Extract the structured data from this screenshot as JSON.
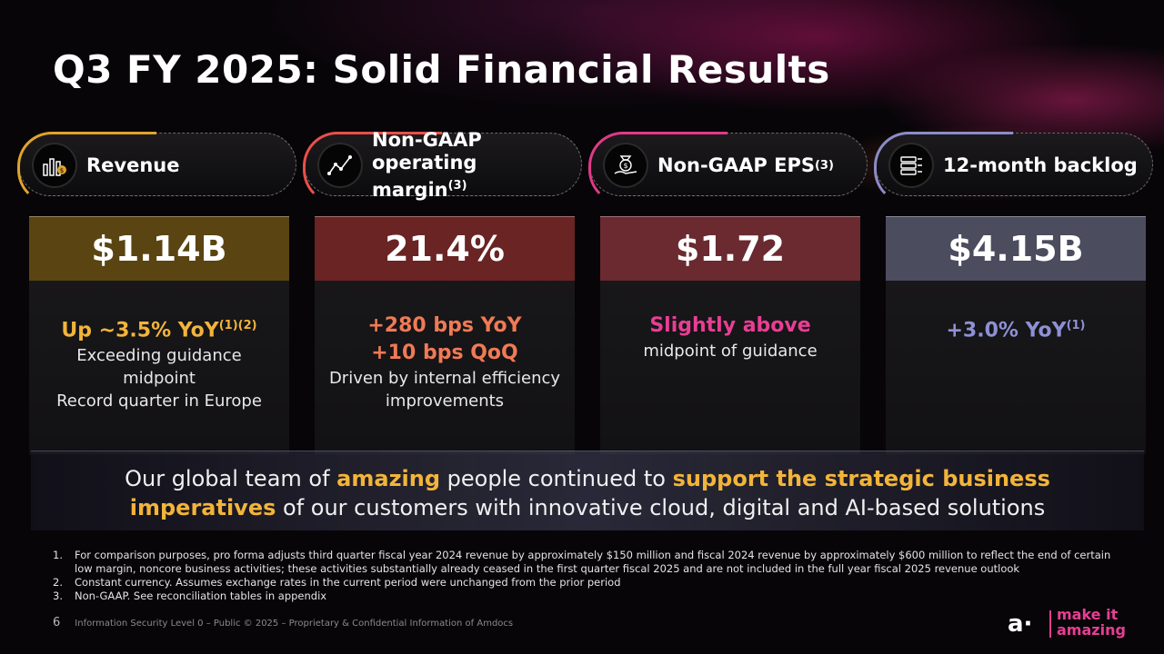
{
  "title": "Q3 FY 2025: Solid Financial Results",
  "cards": [
    {
      "label": "Revenue",
      "label_sup": "",
      "metric": "$1.14B",
      "highlight": "Up ~3.5% YoY",
      "highlight_sup": "(1)(2)",
      "highlight2": "",
      "desc": [
        "Exceeding guidance",
        "midpoint",
        "Record quarter in Europe"
      ],
      "icon": "bar-chart-icon",
      "accent": "#e0a42a",
      "metric_bg": "#5a4411",
      "highlight_color": "#f2b43a"
    },
    {
      "label": "Non-GAAP operating margin",
      "label_sup": "(3)",
      "metric": "21.4%",
      "highlight": "+280 bps YoY",
      "highlight_sup": "",
      "highlight2": "+10 bps QoQ",
      "desc": [
        "Driven by internal efficiency",
        "improvements"
      ],
      "icon": "line-chart-icon",
      "accent": "#e8504a",
      "metric_bg": "#6a2423",
      "highlight_color": "#f07a55"
    },
    {
      "label": "Non-GAAP EPS",
      "label_sup": "(3)",
      "metric": "$1.72",
      "highlight": "Slightly above",
      "highlight_sup": "",
      "highlight2": "",
      "desc": [
        "midpoint of guidance"
      ],
      "icon": "money-hand-icon",
      "accent": "#e03a86",
      "metric_bg": "#6a2a30",
      "highlight_color": "#e83e94"
    },
    {
      "label": "12-month backlog",
      "label_sup": "",
      "metric": "$4.15B",
      "highlight": "+3.0% YoY",
      "highlight_sup": "(1)",
      "highlight2": "",
      "desc": [],
      "icon": "backlog-list-icon",
      "accent": "#8c8cc8",
      "metric_bg": "#4b4c5e",
      "highlight_color": "#8e90d6"
    }
  ],
  "banner": {
    "line1_a": "Our global team of ",
    "line1_b": "amazing",
    "line1_c": " people continued to ",
    "line1_d": "support the strategic business",
    "line2_a": "imperatives",
    "line2_b": " of our customers with innovative cloud, digital and AI-based solutions"
  },
  "footnotes": [
    {
      "num": "1.",
      "text": "For comparison purposes, pro forma adjusts third quarter fiscal year 2024 revenue by approximately $150 million and fiscal 2024 revenue by approximately $600 million to reflect the end of certain low margin, noncore business activities; these activities substantially already ceased in the first quarter fiscal 2025 and are not included in the full year fiscal 2025 revenue outlook"
    },
    {
      "num": "2.",
      "text": "Constant currency. Assumes exchange rates in the current period were unchanged from the prior period"
    },
    {
      "num": "3.",
      "text": "Non-GAAP. See reconciliation tables in appendix"
    }
  ],
  "footer": {
    "page": "6",
    "text": "Information Security Level 0 – Public © 2025 – Proprietary & Confidential Information of Amdocs"
  },
  "brand": {
    "mark": "a·",
    "line1": "make it",
    "line2": "amazing"
  }
}
